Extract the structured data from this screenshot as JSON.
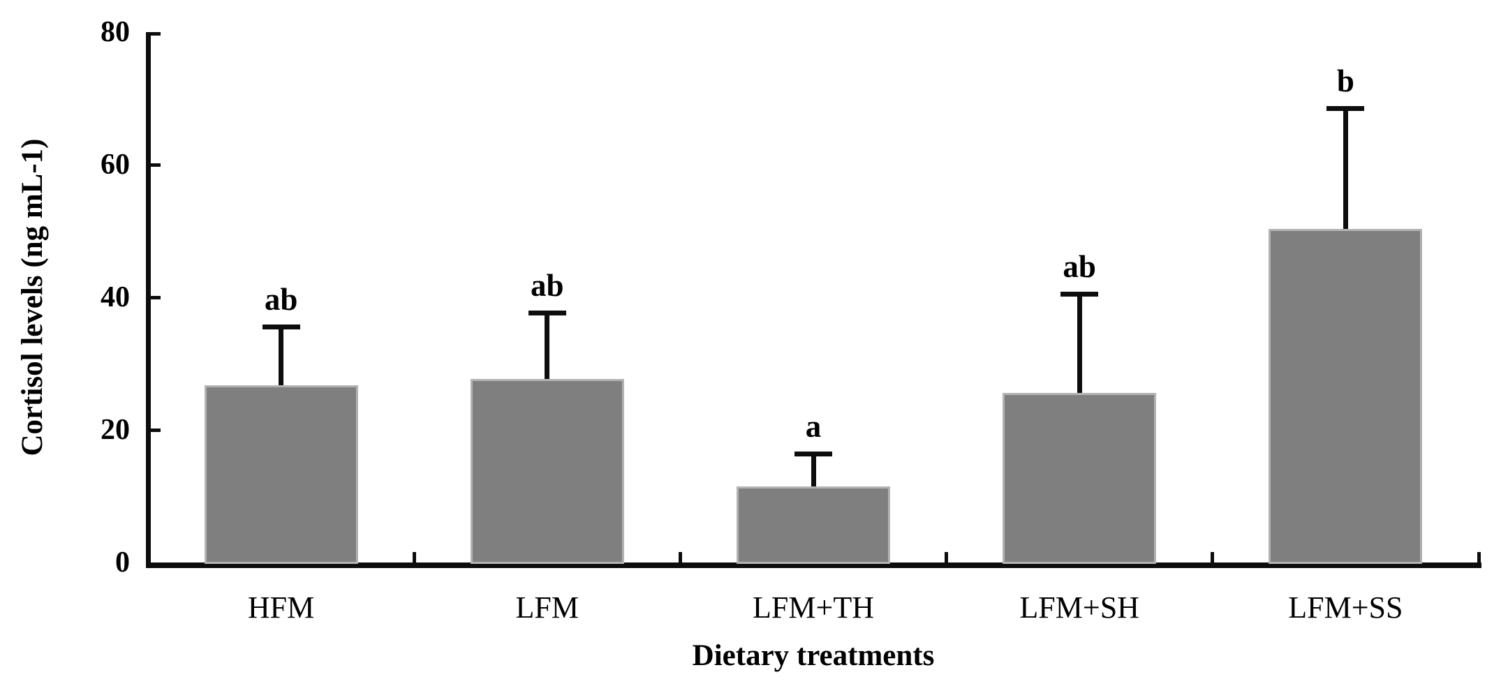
{
  "figure": {
    "background": "#ffffff"
  },
  "chart_data": {
    "type": "bar",
    "title": "",
    "xlabel": "Dietary treatments",
    "ylabel": "Cortisol levels (ng mL-1)",
    "categories": [
      "HFM",
      "LFM",
      "LFM+TH",
      "LFM+SH",
      "LFM+SS"
    ],
    "series": [
      {
        "name": "Cortisol levels",
        "values": [
          26.7,
          27.7,
          11.5,
          25.6,
          50.3
        ]
      }
    ],
    "error_bar_tops": [
      35.9,
      38.0,
      16.7,
      40.8,
      68.8
    ],
    "significance_letters": [
      "ab",
      "ab",
      "a",
      "ab",
      "b"
    ],
    "ylim": [
      0,
      80
    ],
    "yticks": [
      0,
      20,
      40,
      60,
      80
    ],
    "ytick_labels": [
      "0",
      "20",
      "40",
      "60",
      "80"
    ],
    "grid": false,
    "legend_position": "none",
    "bar_color": "#7f7f7f",
    "bar_border_color": "#b3b3b3",
    "axis_color": "#0d0d0d",
    "text_color": "#000000"
  }
}
